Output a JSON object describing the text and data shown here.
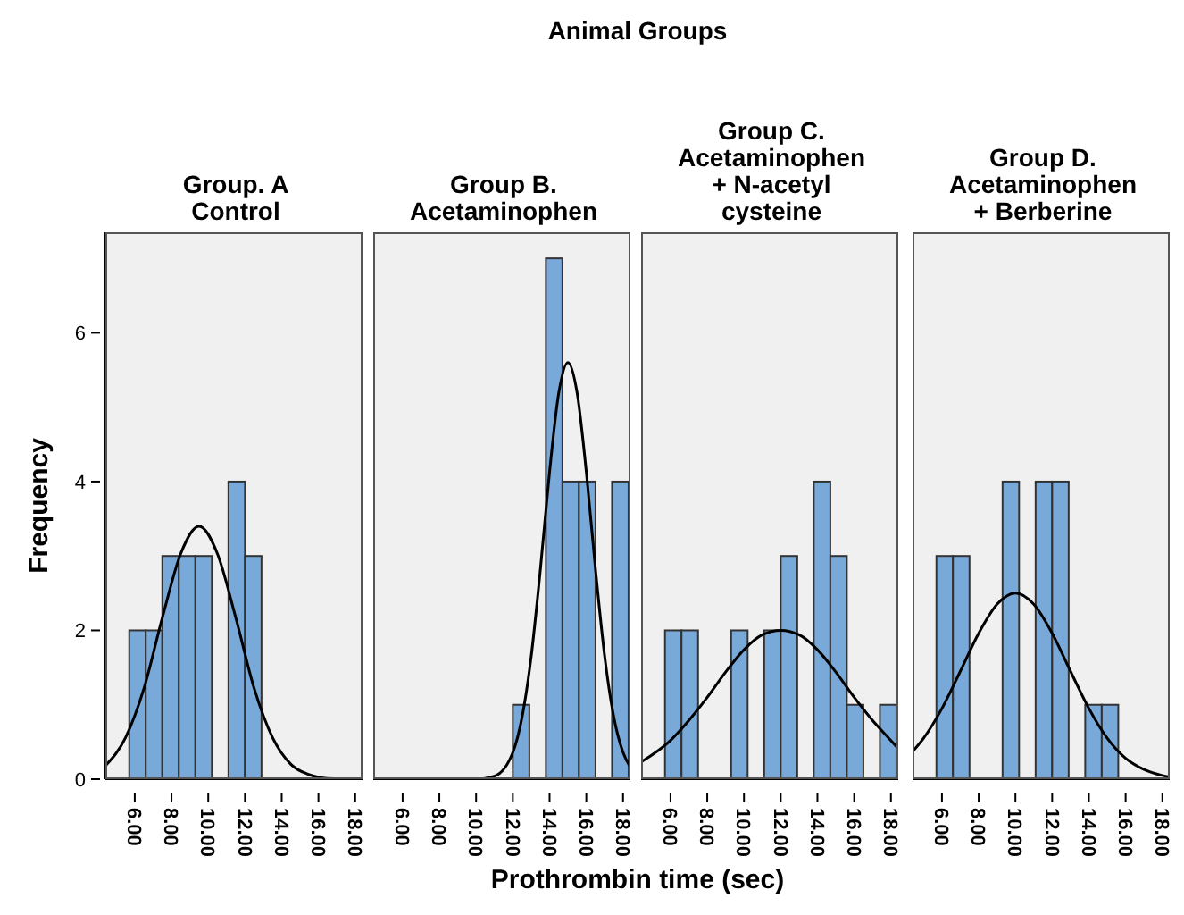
{
  "chart_data": [
    {
      "type": "histogram",
      "title": "Group. A\nControl",
      "annotations": [
        "Animal Groups"
      ],
      "xlabel": "Prothrombin time (sec)",
      "ylabel": "Frequency",
      "bins": [
        5.7,
        6.6,
        7.5,
        8.4,
        9.3,
        10.2,
        11.1,
        12.0,
        12.9,
        13.8,
        14.7,
        15.6,
        16.5,
        17.4,
        18.3
      ],
      "values": [
        2,
        2,
        3,
        3,
        3,
        0,
        4,
        3,
        0,
        0,
        0,
        0,
        0,
        0
      ],
      "color": "#79a9d9",
      "marker": "none",
      "series": [
        {
          "type": "line",
          "color": "#000000",
          "x": [
            4.4,
            5.5,
            6.5,
            7.5,
            8.5,
            9.5,
            10.5,
            11.5,
            12.5,
            13.5,
            14.5,
            15.5,
            16.5,
            18.4
          ],
          "values": [
            0.18,
            0.56,
            1.22,
            2.17,
            3.03,
            3.4,
            3.03,
            2.17,
            1.22,
            0.56,
            0.2,
            0.06,
            0.01,
            0
          ]
        }
      ],
      "xlim": [
        4.4,
        18.4
      ],
      "xticks": [
        {
          "value": 6,
          "label": "6.00"
        },
        {
          "value": 8,
          "label": "8.00"
        },
        {
          "value": 10,
          "label": "10.00"
        },
        {
          "value": 12,
          "label": "12.00"
        },
        {
          "value": 14,
          "label": "14.00"
        },
        {
          "value": 16,
          "label": "16.00"
        },
        {
          "value": 18,
          "label": "18.00"
        }
      ],
      "ylim": [
        0,
        7.35
      ],
      "yticks": [
        0,
        2,
        4,
        6
      ]
    },
    {
      "type": "histogram",
      "title": "Group B.\nAcetaminophen",
      "bins": [
        5.7,
        6.6,
        7.5,
        8.4,
        9.3,
        10.2,
        11.1,
        12.0,
        12.9,
        13.8,
        14.7,
        15.6,
        16.5,
        17.4,
        18.3
      ],
      "values": [
        0,
        0,
        0,
        0,
        0,
        0,
        0,
        1,
        0,
        7,
        4,
        4,
        0,
        4
      ],
      "color": "#79a9d9",
      "marker": "none",
      "series": [
        {
          "type": "line",
          "color": "#000000",
          "x": [
            4.4,
            10,
            11,
            12,
            12.5,
            13,
            13.5,
            14,
            14.5,
            15,
            15.5,
            16,
            16.5,
            17,
            17.5,
            18,
            18.4
          ],
          "values": [
            0,
            0,
            0.04,
            0.36,
            0.83,
            1.65,
            2.82,
            4.13,
            5.19,
            5.6,
            5.19,
            4.13,
            2.82,
            1.65,
            0.83,
            0.36,
            0.16
          ]
        }
      ],
      "xlim": [
        4.4,
        18.4
      ],
      "xticks": [
        {
          "value": 6,
          "label": "6.00"
        },
        {
          "value": 8,
          "label": "8.00"
        },
        {
          "value": 10,
          "label": "10.00"
        },
        {
          "value": 12,
          "label": "12.00"
        },
        {
          "value": 14,
          "label": "14.00"
        },
        {
          "value": 16,
          "label": "16.00"
        },
        {
          "value": 18,
          "label": "18.00"
        }
      ],
      "ylim": [
        0,
        7.35
      ],
      "yticks": [
        0,
        2,
        4,
        6
      ],
      "tick_labels": "x"
    },
    {
      "type": "histogram",
      "title": "Group C.\nAcetaminophen\n+ N-acetyl\ncysteine",
      "bins": [
        5.7,
        6.6,
        7.5,
        8.4,
        9.3,
        10.2,
        11.1,
        12.0,
        12.9,
        13.8,
        14.7,
        15.6,
        16.5,
        17.4,
        18.3
      ],
      "values": [
        2,
        2,
        0,
        0,
        2,
        0,
        2,
        3,
        0,
        4,
        3,
        1,
        0,
        1
      ],
      "color": "#79a9d9",
      "marker": "none",
      "series": [
        {
          "type": "line",
          "color": "#000000",
          "x": [
            4.4,
            6,
            7,
            8,
            9,
            10,
            11,
            12,
            13,
            14,
            15,
            16,
            17,
            18,
            18.4
          ],
          "values": [
            0.23,
            0.52,
            0.79,
            1.1,
            1.44,
            1.74,
            1.94,
            2.0,
            1.94,
            1.74,
            1.44,
            1.1,
            0.79,
            0.52,
            0.41
          ]
        }
      ],
      "xlim": [
        4.4,
        18.4
      ],
      "xticks": [
        {
          "value": 6,
          "label": "6.00"
        },
        {
          "value": 8,
          "label": "8.00"
        },
        {
          "value": 10,
          "label": "10.00"
        },
        {
          "value": 12,
          "label": "12.00"
        },
        {
          "value": 14,
          "label": "14.00"
        },
        {
          "value": 16,
          "label": "16.00"
        },
        {
          "value": 18,
          "label": "18.00"
        }
      ],
      "ylim": [
        0,
        7.35
      ],
      "yticks": [
        0,
        2,
        4,
        6
      ],
      "tick_labels": "x"
    },
    {
      "type": "histogram",
      "title": "Group D.\nAcetaminophen\n+ Berberine",
      "bins": [
        5.7,
        6.6,
        7.5,
        8.4,
        9.3,
        10.2,
        11.1,
        12.0,
        12.9,
        13.8,
        14.7,
        15.6,
        16.5,
        17.4,
        18.3
      ],
      "values": [
        3,
        3,
        0,
        0,
        4,
        0,
        4,
        4,
        0,
        1,
        1,
        0,
        0,
        0
      ],
      "color": "#79a9d9",
      "marker": "none",
      "series": [
        {
          "type": "line",
          "color": "#000000",
          "x": [
            4.4,
            5,
            6,
            7,
            8,
            9,
            10,
            11,
            12,
            13,
            14,
            15,
            16,
            17,
            18,
            18.4
          ],
          "values": [
            0.37,
            0.55,
            0.95,
            1.45,
            1.96,
            2.35,
            2.5,
            2.35,
            1.96,
            1.45,
            0.95,
            0.55,
            0.28,
            0.13,
            0.05,
            0.03
          ]
        }
      ],
      "xlim": [
        4.4,
        18.4
      ],
      "xticks": [
        {
          "value": 6,
          "label": "6.00"
        },
        {
          "value": 8,
          "label": "8.00"
        },
        {
          "value": 10,
          "label": "10.00"
        },
        {
          "value": 12,
          "label": "12.00"
        },
        {
          "value": 14,
          "label": "14.00"
        },
        {
          "value": 16,
          "label": "16.00"
        },
        {
          "value": 18,
          "label": "18.00"
        }
      ],
      "ylim": [
        0,
        7.35
      ],
      "yticks": [
        0,
        2,
        4,
        6
      ],
      "tick_labels": "x"
    }
  ]
}
